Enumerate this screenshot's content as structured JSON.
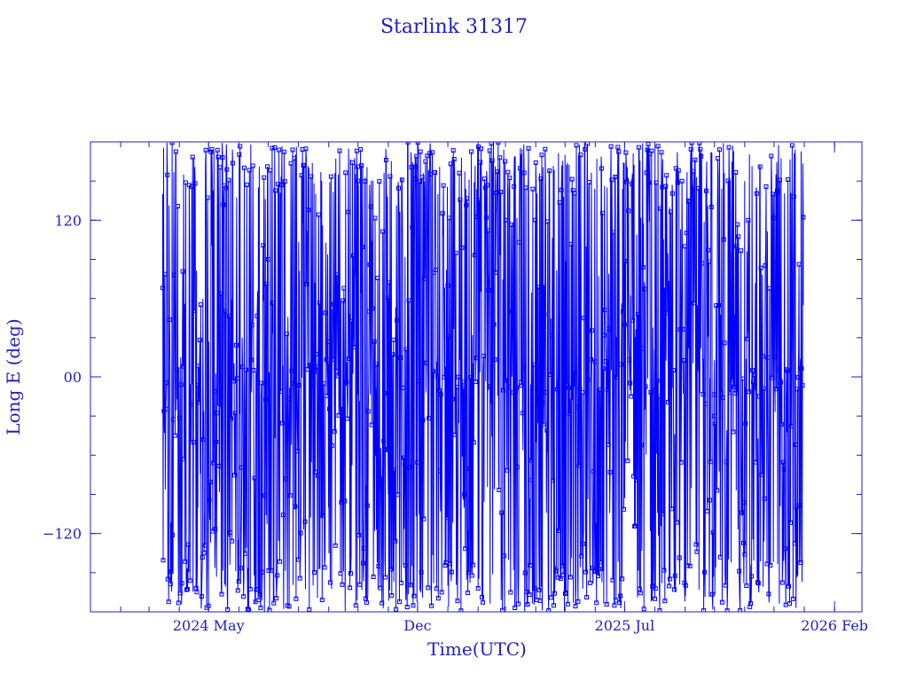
{
  "chart_data": {
    "type": "line",
    "title": "Starlink 31317",
    "xlabel": "Time(UTC)",
    "ylabel": "Long E (deg)",
    "x_tick_labels": [
      "2024 May",
      "Dec",
      "2025 Jul",
      "2026 Feb"
    ],
    "x_ticks": [
      "2024-05-01",
      "2024-12-01",
      "2025-07-01",
      "2026-02-01"
    ],
    "xlim": [
      "2024-01-01",
      "2026-03-01"
    ],
    "y_tick_labels": [
      "120",
      "00",
      "−120"
    ],
    "y_ticks": [
      120,
      0,
      -120
    ],
    "ylim": [
      -180,
      180
    ],
    "series": [
      {
        "color": "#0000ff",
        "marker": "square",
        "x_range": [
          "2024-03-15",
          "2025-12-31"
        ],
        "y_range": [
          -180,
          180
        ],
        "pattern": "longitude sampled repeatedly, wrapping between -180 and 180 deg across the full range",
        "sample_points": [
          [
            "2024-03-15",
            140
          ],
          [
            "2024-03-20",
            75
          ],
          [
            "2024-03-25",
            -150
          ],
          [
            "2024-04-05",
            30
          ],
          [
            "2024-04-20",
            -100
          ],
          [
            "2024-05-10",
            160
          ],
          [
            "2024-06-01",
            -60
          ],
          [
            "2024-07-01",
            90
          ],
          [
            "2024-08-01",
            -140
          ],
          [
            "2024-09-01",
            10
          ],
          [
            "2024-10-01",
            150
          ],
          [
            "2024-11-01",
            -90
          ],
          [
            "2024-12-01",
            60
          ],
          [
            "2025-01-01",
            -160
          ],
          [
            "2025-02-01",
            5
          ],
          [
            "2025-03-01",
            120
          ],
          [
            "2025-04-01",
            -50
          ],
          [
            "2025-05-01",
            170
          ],
          [
            "2025-06-01",
            -120
          ],
          [
            "2025-07-01",
            40
          ],
          [
            "2025-08-01",
            -170
          ],
          [
            "2025-09-01",
            100
          ],
          [
            "2025-10-01",
            -30
          ],
          [
            "2025-11-01",
            150
          ],
          [
            "2025-12-15",
            -160
          ],
          [
            "2025-12-31",
            55
          ]
        ]
      }
    ],
    "grid": false
  }
}
